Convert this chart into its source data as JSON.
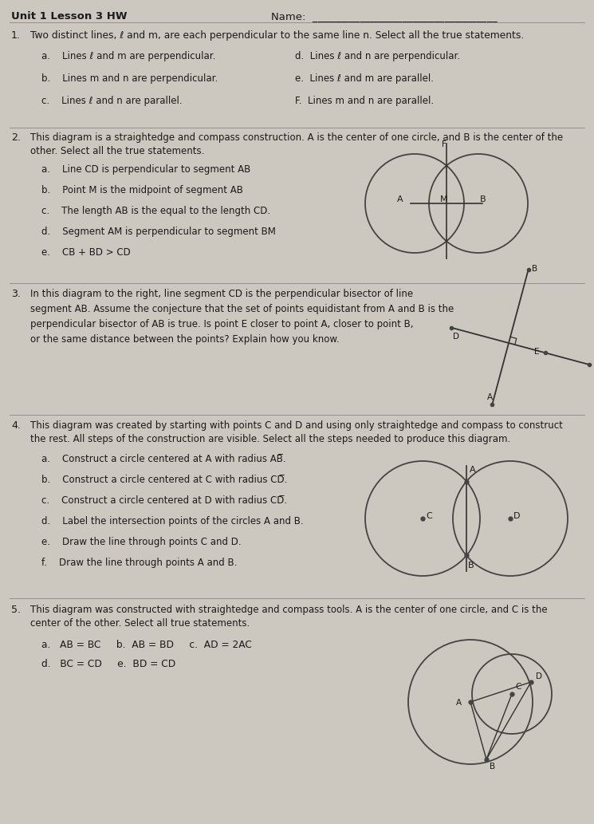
{
  "title": "Unit 1 Lesson 3 HW",
  "name_label": "Name:",
  "background_color": "#cdc8bf",
  "text_color": "#1a1a1a",
  "q1": {
    "number": "1.",
    "text": "Two distinct lines, ℓ and m, are each perpendicular to the same line n. Select all the true statements.",
    "options_left": [
      "a.    Lines ℓ and m are perpendicular.",
      "b.    Lines m and n are perpendicular.",
      "c.    Lines ℓ and n are parallel."
    ],
    "options_right": [
      "d.  Lines ℓ and n are perpendicular.",
      "e.  Lines ℓ and m are parallel.",
      "F.  Lines m and n are parallel."
    ]
  },
  "q2": {
    "number": "2.",
    "text_line1": "This diagram is a straightedge and compass construction. A is the center of one circle, and B is the center of the",
    "text_line2": "other. Select all the true statements.",
    "options": [
      "a.    Line CD is perpendicular to segment AB",
      "b.    Point M is the midpoint of segment AB",
      "c.    The length AB is the equal to the length CD.",
      "d.    Segment AM is perpendicular to segment BM",
      "e.    CB + BD > CD"
    ]
  },
  "q3": {
    "number": "3.",
    "text_lines": [
      "In this diagram to the right, line segment CD is the perpendicular bisector of line",
      "segment AB. Assume the conjecture that the set of points equidistant from A and B is the",
      "perpendicular bisector of AB is true. Is point E closer to point A, closer to point B,",
      "or the same distance between the points? Explain how you know."
    ]
  },
  "q4": {
    "number": "4.",
    "text_line1": "This diagram was created by starting with points C and D and using only straightedge and compass to construct",
    "text_line2": "the rest. All steps of the construction are visible. Select all the steps needed to produce this diagram.",
    "options": [
      "a.    Construct a circle centered at A with radius AB̅.",
      "b.    Construct a circle centered at C with radius CD̅.",
      "c.    Construct a circle centered at D with radius CD̅.",
      "d.    Label the intersection points of the circles A and B.",
      "e.    Draw the line through points C and D.",
      "f.    Draw the line through points A and B."
    ]
  },
  "q5": {
    "number": "5.",
    "text_line1": "This diagram was constructed with straightedge and compass tools. A is the center of one circle, and C is the",
    "text_line2": "center of the other. Select all true statements.",
    "options_line1": "a.   AB = BC     b.  AB = BD     c.  AD = 2AC",
    "options_line2": "d.   BC = CD     e.  BD = CD"
  },
  "diagram_color": "#444444",
  "line_color": "#333333"
}
